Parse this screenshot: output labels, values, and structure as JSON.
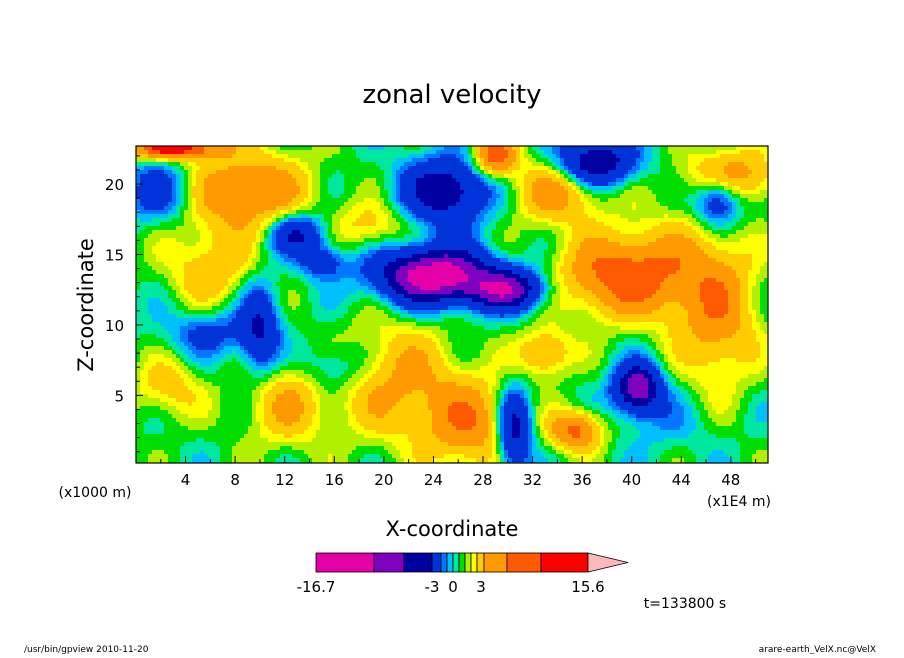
{
  "chart_data": {
    "type": "heatmap",
    "title": "zonal velocity",
    "xlabel": "X-coordinate",
    "ylabel": "Z-coordinate",
    "y_unit": "(x1000 m)",
    "x_unit": "(x1E4 m)",
    "xlim": [
      0,
      51
    ],
    "ylim": [
      0.2,
      22.7
    ],
    "x_ticks": [
      4,
      8,
      12,
      16,
      20,
      24,
      28,
      32,
      36,
      40,
      44,
      48
    ],
    "y_ticks": [
      5,
      10,
      15,
      20
    ],
    "colorbar": {
      "colors": [
        "#e300a8",
        "#8000c0",
        "#0000a0",
        "#0033d8",
        "#0077ff",
        "#00bfff",
        "#00e8a0",
        "#00dd00",
        "#b0f000",
        "#ffff00",
        "#ffcc00",
        "#ff9a00",
        "#ff5a00",
        "#ff0000",
        "#ff7777",
        "#ffb8b8"
      ],
      "labels": [
        "-16.7",
        "-3",
        "0",
        "3",
        "15.6"
      ],
      "label_values": [
        -16.7,
        -3,
        0,
        3,
        15.6
      ]
    },
    "time_label": "t=133800 s"
  },
  "footer": {
    "left": "/usr/bin/gpview   2010-11-20",
    "right": "arare-earth_VelX.nc@VelX"
  }
}
